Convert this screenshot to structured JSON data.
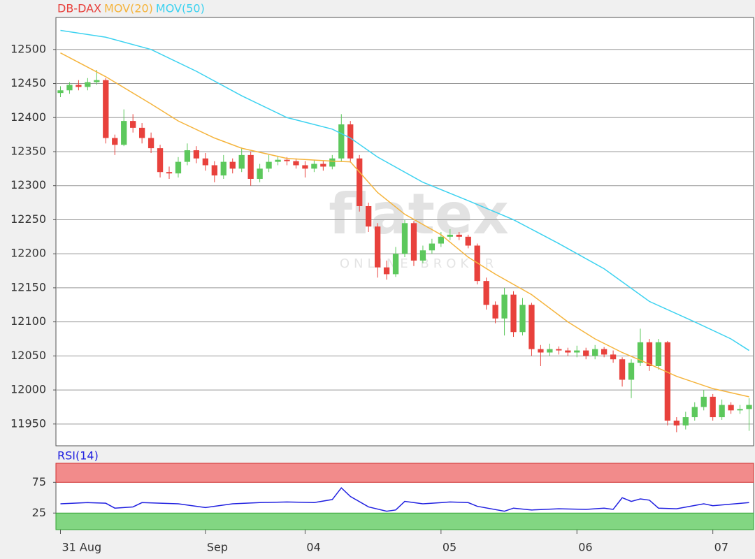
{
  "chart_data": [
    {
      "type": "candlestick",
      "name": "DB-DAX",
      "color": "#e8413c",
      "up_color": "#5cc85c",
      "down_color": "#e8413c",
      "watermark": "flatex",
      "watermark_sub": "ONLINE BROKER",
      "open": [
        12436,
        12440,
        12448,
        12445,
        12452,
        12455,
        12370,
        12360,
        12395,
        12385,
        12370,
        12355,
        12320,
        12318,
        12335,
        12352,
        12340,
        12330,
        12315,
        12335,
        12325,
        12345,
        12310,
        12325,
        12335,
        12338,
        12336,
        12330,
        12325,
        12332,
        12328,
        12340,
        12390,
        12340,
        12270,
        12240,
        12180,
        12170,
        12200,
        12245,
        12190,
        12205,
        12215,
        12225,
        12228,
        12225,
        12212,
        12160,
        12125,
        12105,
        12140,
        12085,
        12125,
        12060,
        12055,
        12060,
        12058,
        12055,
        12058,
        12050,
        12060,
        12052,
        12045,
        12015,
        12040,
        12070,
        12035,
        12070,
        11955,
        11948,
        11960,
        11975,
        11990,
        11960,
        11978,
        11970,
        11972
      ],
      "high": [
        12446,
        12452,
        12455,
        12458,
        12470,
        12458,
        12375,
        12412,
        12405,
        12392,
        12378,
        12360,
        12328,
        12342,
        12362,
        12358,
        12348,
        12336,
        12345,
        12340,
        12356,
        12350,
        12332,
        12345,
        12344,
        12342,
        12340,
        12336,
        12338,
        12336,
        12345,
        12405,
        12395,
        12345,
        12275,
        12245,
        12190,
        12210,
        12250,
        12248,
        12212,
        12222,
        12232,
        12236,
        12232,
        12228,
        12215,
        12165,
        12130,
        12150,
        12145,
        12135,
        12128,
        12066,
        12068,
        12064,
        12062,
        12065,
        12062,
        12066,
        12063,
        12058,
        12048,
        12045,
        12090,
        12075,
        12075,
        12072,
        11960,
        11968,
        11982,
        12000,
        11994,
        11986,
        11982,
        11978,
        11988
      ],
      "low": [
        12430,
        12435,
        12440,
        12440,
        12448,
        12362,
        12345,
        12358,
        12378,
        12362,
        12348,
        12312,
        12310,
        12312,
        12330,
        12333,
        12322,
        12305,
        12310,
        12318,
        12320,
        12300,
        12305,
        12320,
        12330,
        12330,
        12325,
        12312,
        12320,
        12322,
        12324,
        12335,
        12334,
        12262,
        12232,
        12165,
        12162,
        12166,
        12195,
        12182,
        12186,
        12200,
        12210,
        12220,
        12220,
        12208,
        12155,
        12118,
        12098,
        12080,
        12078,
        12080,
        12050,
        12035,
        12050,
        12052,
        12050,
        12048,
        12045,
        12045,
        12048,
        12040,
        12005,
        11988,
        12035,
        12028,
        12030,
        11948,
        11938,
        11942,
        11955,
        11970,
        11955,
        11956,
        11965,
        11965,
        11940
      ],
      "close": [
        12440,
        12448,
        12445,
        12452,
        12455,
        12370,
        12360,
        12395,
        12385,
        12370,
        12355,
        12320,
        12318,
        12335,
        12352,
        12340,
        12330,
        12315,
        12335,
        12325,
        12345,
        12310,
        12325,
        12335,
        12338,
        12336,
        12330,
        12325,
        12332,
        12328,
        12340,
        12390,
        12340,
        12270,
        12240,
        12180,
        12170,
        12200,
        12245,
        12190,
        12205,
        12215,
        12225,
        12228,
        12225,
        12212,
        12160,
        12125,
        12105,
        12140,
        12085,
        12125,
        12060,
        12055,
        12060,
        12058,
        12055,
        12058,
        12050,
        12060,
        12052,
        12045,
        12015,
        12040,
        12070,
        12035,
        12070,
        11955,
        11948,
        11960,
        11975,
        11990,
        11960,
        11978,
        11970,
        11972,
        11978
      ],
      "overlays": [
        {
          "name": "MOV(20)",
          "color": "#f5b43c",
          "x": [
            0,
            5,
            10,
            13,
            17,
            20,
            25,
            30,
            32,
            35,
            38,
            42,
            45,
            48,
            52,
            56,
            59,
            62,
            65,
            68,
            72,
            76
          ],
          "values": [
            12495,
            12460,
            12420,
            12395,
            12370,
            12355,
            12340,
            12336,
            12335,
            12290,
            12258,
            12228,
            12195,
            12170,
            12140,
            12100,
            12075,
            12055,
            12038,
            12020,
            12002,
            11990
          ]
        },
        {
          "name": "MOV(50)",
          "color": "#3cd2f0",
          "x": [
            0,
            5,
            10,
            15,
            20,
            25,
            30,
            32,
            35,
            40,
            45,
            50,
            55,
            60,
            65,
            70,
            74,
            76
          ],
          "values": [
            12528,
            12518,
            12500,
            12468,
            12432,
            12400,
            12383,
            12370,
            12342,
            12305,
            12278,
            12250,
            12215,
            12178,
            12130,
            12100,
            12075,
            12058
          ]
        }
      ],
      "xlim": [
        -0.5,
        76.5
      ],
      "ylim": [
        11918,
        12547
      ],
      "yticks": [
        11950,
        12000,
        12050,
        12100,
        12150,
        12200,
        12250,
        12300,
        12350,
        12400,
        12450,
        12500
      ],
      "grid": true
    },
    {
      "type": "line",
      "name": "RSI(14)",
      "color": "#2020e0",
      "band_high_color": "#f28b8b",
      "band_low_color": "#82d682",
      "x": [
        0,
        3,
        5,
        6,
        8,
        9,
        13,
        16,
        19,
        22,
        25,
        28,
        30,
        31,
        32,
        34,
        36,
        37,
        38,
        40,
        43,
        45,
        46,
        49,
        50,
        52,
        55,
        58,
        60,
        61,
        62,
        63,
        64,
        65,
        66,
        68,
        71,
        72,
        76
      ],
      "values": [
        40,
        42,
        41,
        33,
        35,
        42,
        40,
        34,
        40,
        42,
        43,
        42,
        47,
        66,
        52,
        35,
        28,
        30,
        44,
        40,
        43,
        42,
        36,
        28,
        33,
        30,
        32,
        31,
        33,
        31,
        50,
        44,
        48,
        46,
        33,
        32,
        40,
        37,
        42
      ],
      "xlim": [
        -0.5,
        76.5
      ],
      "ylim": [
        -2,
        106
      ],
      "yticks": [
        25,
        75
      ],
      "xticks": [
        {
          "value": 0,
          "label": "31 Aug"
        },
        {
          "value": 16,
          "label": "Sep"
        },
        {
          "value": 27,
          "label": "04"
        },
        {
          "value": 42,
          "label": "05"
        },
        {
          "value": 57,
          "label": "06"
        },
        {
          "value": 72,
          "label": "07"
        }
      ]
    }
  ]
}
